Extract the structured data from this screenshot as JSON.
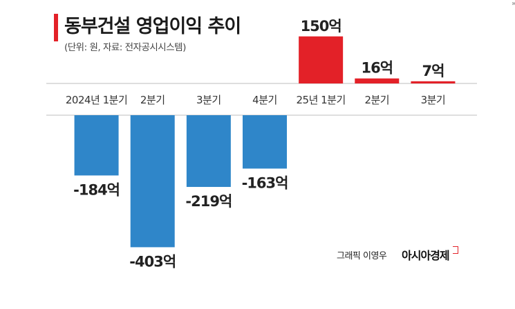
{
  "title": "동부건설 영업이익 추이",
  "subtitle": "(단위: 원, 자료: 전자공시시스템)",
  "credit": {
    "byline": "그래픽 이영우",
    "brand": "아시아경제"
  },
  "colors": {
    "negative": "#2f86c9",
    "positive": "#e32128",
    "band": "#d9d9d9",
    "accent": "#e32128"
  },
  "chart_data": {
    "type": "bar",
    "title": "동부건설 영업이익 추이",
    "categories": [
      "2024년 1분기",
      "2분기",
      "3분기",
      "4분기",
      "25년 1분기",
      "2분기",
      "3분기"
    ],
    "values": [
      -184,
      -403,
      -219,
      -163,
      150,
      16,
      7
    ],
    "labels": [
      "-184억",
      "-403억",
      "-219억",
      "-163억",
      "150억",
      "16억",
      "7억"
    ],
    "ylim": [
      -403,
      150
    ],
    "grid": false,
    "legend": "none"
  }
}
